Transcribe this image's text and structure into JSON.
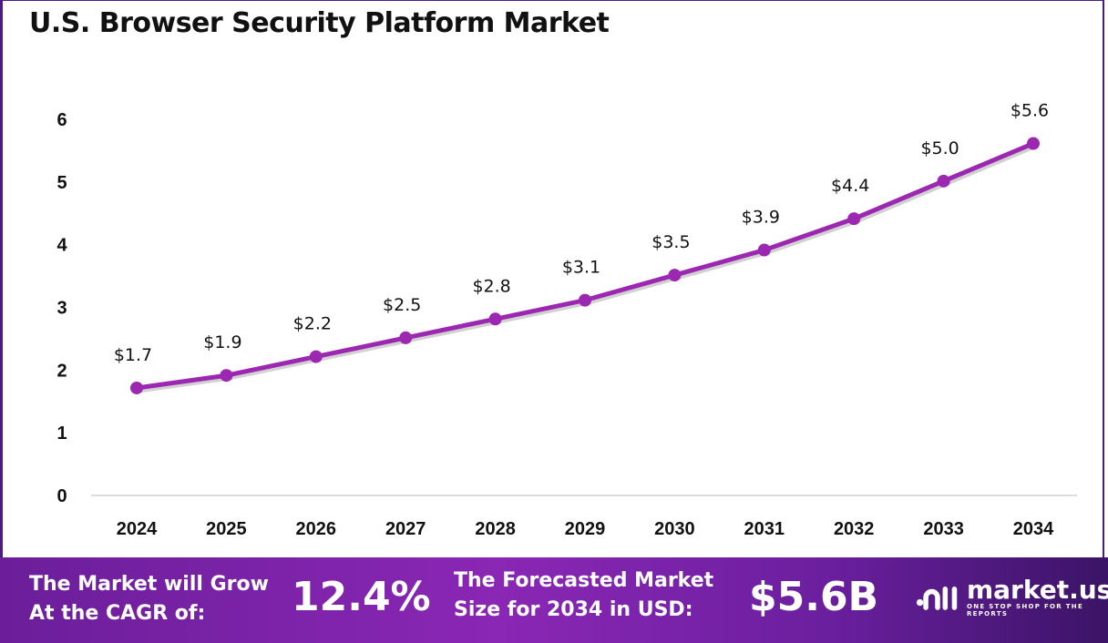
{
  "title": "U.S. Browser Security Platform Market",
  "chart_data": {
    "type": "line",
    "title": "U.S. Browser Security Platform Market",
    "categories": [
      "2024",
      "2025",
      "2026",
      "2027",
      "2028",
      "2029",
      "2030",
      "2031",
      "2032",
      "2033",
      "2034"
    ],
    "values": [
      1.7,
      1.9,
      2.2,
      2.5,
      2.8,
      3.1,
      3.5,
      3.9,
      4.4,
      5.0,
      5.6
    ],
    "data_labels": [
      "$1.7",
      "$1.9",
      "$2.2",
      "$2.5",
      "$2.8",
      "$3.1",
      "$3.5",
      "$3.9",
      "$4.4",
      "$5.0",
      "$5.6"
    ],
    "yticks": [
      "0",
      "1",
      "2",
      "3",
      "4",
      "5",
      "6"
    ],
    "ylim": [
      0,
      6
    ],
    "grid": false,
    "line_color": "#9c27b0"
  },
  "footer": {
    "cagr_label_line1": "The Market will Grow",
    "cagr_label_line2": "At the CAGR of:",
    "cagr_value": "12.4%",
    "forecast_label_line1": "The Forecasted Market",
    "forecast_label_line2": "Size for 2034 in USD:",
    "forecast_value": "$5.6B"
  },
  "logo": {
    "name": "market.us",
    "tagline": "ONE STOP SHOP FOR THE REPORTS"
  }
}
